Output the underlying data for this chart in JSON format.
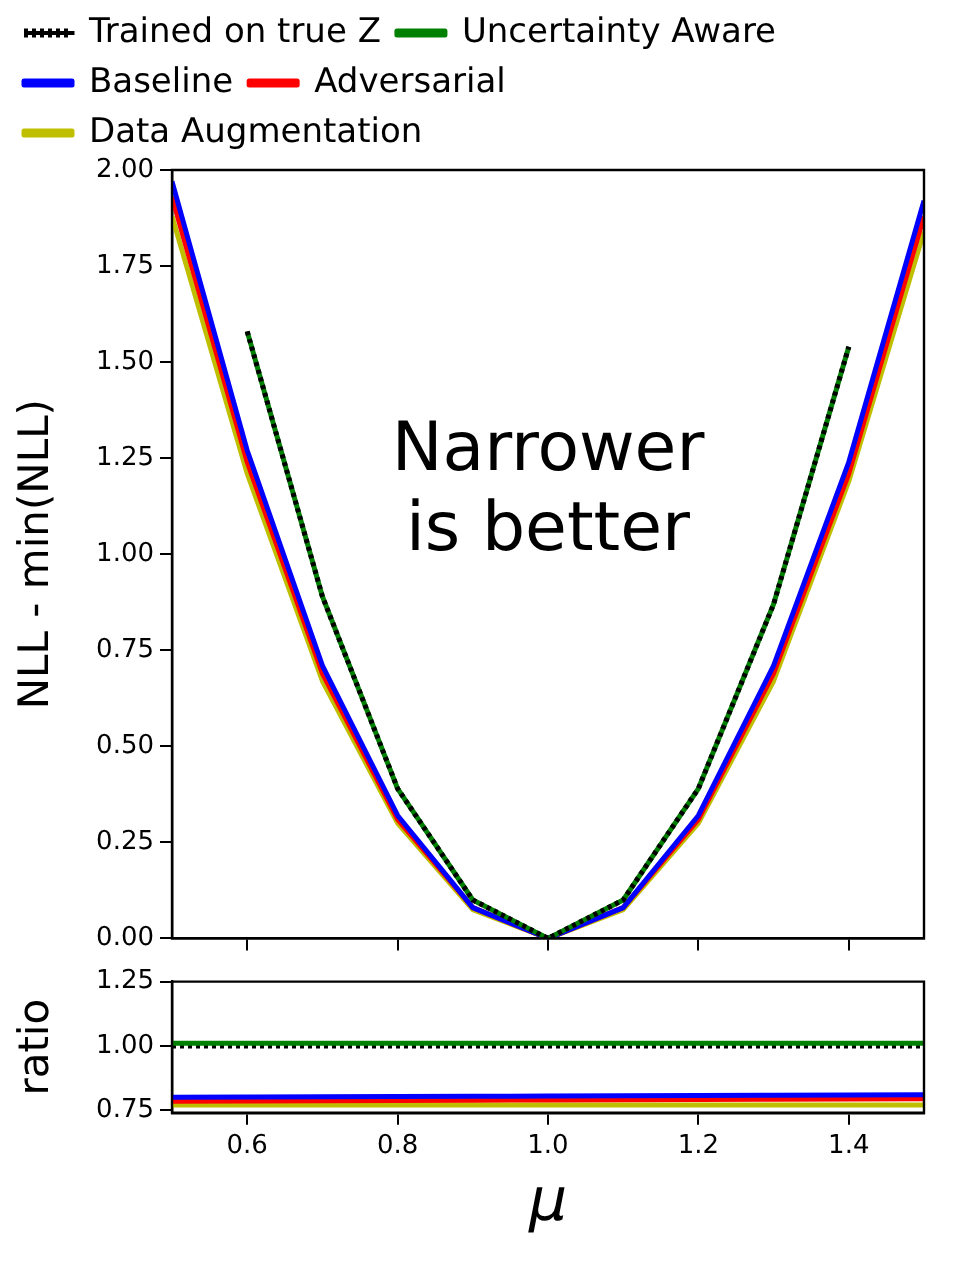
{
  "chart_data": [
    {
      "type": "line",
      "ylabel": "NLL - min(NLL)",
      "x": [
        0.5,
        0.6,
        0.7,
        0.8,
        0.9,
        1.0,
        1.1,
        1.2,
        1.3,
        1.4,
        1.5
      ],
      "xlim": [
        0.5,
        1.5
      ],
      "xticks": [
        0.6,
        0.8,
        1.0,
        1.2,
        1.4
      ],
      "ylim": [
        0,
        2
      ],
      "yticks": [
        {
          "value": 0,
          "label": "0.00"
        },
        0.25,
        {
          "value": 0.5,
          "label": "0.50"
        },
        0.75,
        {
          "value": 1,
          "label": "1.00"
        },
        1.25,
        {
          "value": 1.5,
          "label": "1.50"
        },
        1.75,
        {
          "value": 2,
          "label": "2.00"
        }
      ],
      "tick_labels": "y",
      "grid": false,
      "legend": "top",
      "marker": "none",
      "annotations": [
        "Narrower\nis better"
      ],
      "series": [
        {
          "name": "Trained on true Z",
          "color": "#000000",
          "line_style": "dotted",
          "values": [
            null,
            1.58,
            0.89,
            0.39,
            0.1,
            0,
            0.1,
            0.39,
            0.87,
            1.54,
            null
          ]
        },
        {
          "name": "Uncertainty Aware",
          "color": "#008000",
          "values": [
            null,
            1.58,
            0.89,
            0.39,
            0.1,
            0,
            0.1,
            0.39,
            0.87,
            1.54,
            null
          ]
        },
        {
          "name": "Baseline",
          "color": "#0000ff",
          "values": [
            1.97,
            1.27,
            0.71,
            0.32,
            0.08,
            0,
            0.08,
            0.32,
            0.71,
            1.24,
            1.92
          ]
        },
        {
          "name": "Adversarial",
          "color": "#ff0000",
          "values": [
            1.93,
            1.24,
            0.69,
            0.31,
            0.08,
            0,
            0.08,
            0.31,
            0.69,
            1.21,
            1.88
          ]
        },
        {
          "name": "Data Augmentation",
          "color": "#bfbf00",
          "values": [
            1.88,
            1.21,
            0.67,
            0.3,
            0.075,
            0,
            0.075,
            0.3,
            0.67,
            1.19,
            1.84
          ]
        }
      ]
    },
    {
      "type": "line",
      "xlabel": "μ",
      "ylabel": "ratio",
      "x": [
        0.5,
        0.6,
        0.7,
        0.8,
        0.9,
        1.0,
        1.1,
        1.2,
        1.3,
        1.4,
        1.5
      ],
      "xlim": [
        0.5,
        1.5
      ],
      "xticks": [
        0.6,
        0.8,
        {
          "value": 1,
          "label": "1.0"
        },
        1.2,
        1.4
      ],
      "ylim": [
        0.74,
        1.25
      ],
      "yticks": [
        0.75,
        {
          "value": 1,
          "label": "1.00"
        },
        1.25
      ],
      "grid": false,
      "legend": false,
      "marker": "none",
      "series": [
        {
          "color": "#008000",
          "values": [
            1.01,
            1.01,
            1.01,
            1.01,
            1.01,
            1.01,
            1.01,
            1.01,
            1.01,
            1.01,
            1.01
          ]
        },
        {
          "color": "#000000",
          "line_style": "dotted",
          "values": [
            1.0,
            1.0,
            1.0,
            1.0,
            1.0,
            1.0,
            1.0,
            1.0,
            1.0,
            1.0,
            1.0
          ]
        },
        {
          "color": "#0000ff",
          "values": [
            0.8,
            0.801,
            0.802,
            0.803,
            0.804,
            0.805,
            0.806,
            0.807,
            0.808,
            0.809,
            0.81
          ]
        },
        {
          "color": "#ff0000",
          "values": [
            0.785,
            0.786,
            0.787,
            0.788,
            0.789,
            0.79,
            0.791,
            0.792,
            0.793,
            0.794,
            0.795
          ]
        },
        {
          "color": "#bfbf00",
          "values": [
            0.77,
            0.77,
            0.77,
            0.77,
            0.77,
            0.77,
            0.77,
            0.77,
            0.77,
            0.77,
            0.77
          ]
        }
      ]
    }
  ]
}
